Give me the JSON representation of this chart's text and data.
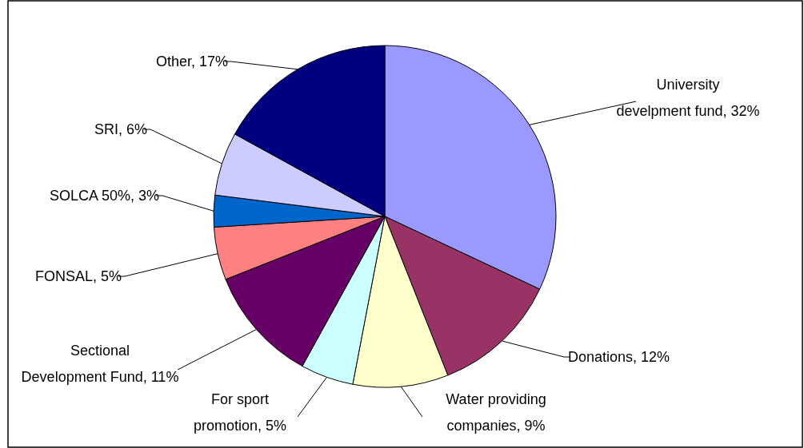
{
  "chart_data": {
    "type": "pie",
    "categories": [
      "University develpment fund",
      "Donations",
      "Water providing companies",
      "For sport promotion",
      "Sectional Development Fund",
      "FONSAL",
      "SOLCA 50%",
      "SRI",
      "Other"
    ],
    "values": [
      32,
      12,
      9,
      5,
      11,
      5,
      3,
      6,
      17
    ],
    "value_labels": [
      "32%",
      "12%",
      "9%",
      "5%",
      "11%",
      "5%",
      "3%",
      "6%",
      "17%"
    ],
    "colors": [
      "#9999ff",
      "#993366",
      "#ffffcc",
      "#ccffff",
      "#660066",
      "#ff8080",
      "#0066cc",
      "#ccccff",
      "#000080"
    ]
  }
}
